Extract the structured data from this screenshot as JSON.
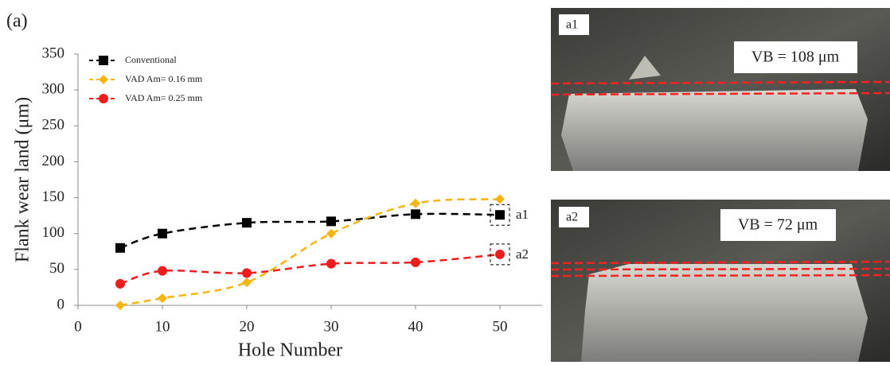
{
  "chart_data": {
    "type": "line",
    "panel_label": "(a)",
    "x_label": "Hole Number",
    "y_label": "Flank wear land (μm)",
    "x": [
      5,
      10,
      20,
      30,
      40,
      50
    ],
    "series": [
      {
        "name": "Conventional",
        "color": "#000000",
        "marker": "square",
        "values": [
          80,
          100,
          115,
          117,
          127,
          126
        ]
      },
      {
        "name": "VAD Am= 0.16 mm",
        "color": "#f5b50f",
        "marker": "diamond",
        "values": [
          0,
          10,
          32,
          100,
          142,
          148
        ]
      },
      {
        "name": "VAD Am= 0.25 mm",
        "color": "#ee1c1c",
        "marker": "circle",
        "values": [
          30,
          48,
          45,
          58,
          60,
          71
        ]
      }
    ],
    "xlim": [
      0,
      55
    ],
    "xticks": [
      0,
      10,
      20,
      30,
      40,
      50
    ],
    "ylim": [
      0,
      350
    ],
    "yticks": [
      0,
      50,
      100,
      150,
      200,
      250,
      300,
      350
    ],
    "grid": false,
    "legend": "upper-left",
    "point_labels": [
      "a1",
      "a2"
    ]
  },
  "photos": [
    {
      "label": "a1",
      "caption": "VB = 108 μm"
    },
    {
      "label": "a2",
      "caption": "VB = 72 μm"
    }
  ]
}
